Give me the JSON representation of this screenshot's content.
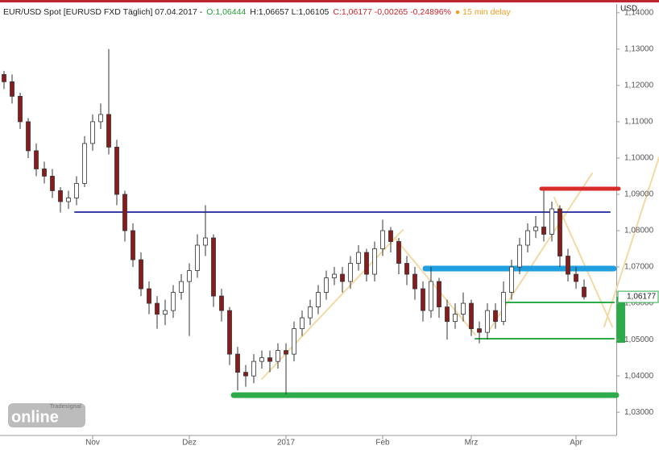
{
  "chart_data": {
    "type": "candlestick",
    "header": {
      "instrument": "EUR/USD Spot [EURUSD FXD Täglich] 07.04.2017 -",
      "open": "O:1,06444",
      "high_low": "H:1,06657 L:1,06105",
      "change": "C:1,06177 -0,00265 -0,24896%",
      "delay": "● 15 min delay"
    },
    "y_unit": "USD",
    "categories": [
      null,
      null,
      null,
      null,
      null,
      null,
      null,
      null,
      null,
      null,
      null,
      "Nov",
      null,
      null,
      null,
      null,
      null,
      null,
      null,
      null,
      null,
      null,
      null,
      "Dez",
      null,
      null,
      null,
      null,
      null,
      null,
      null,
      null,
      null,
      null,
      null,
      "2017",
      null,
      null,
      null,
      null,
      null,
      null,
      null,
      null,
      null,
      null,
      null,
      "Feb",
      null,
      null,
      null,
      null,
      null,
      null,
      null,
      null,
      null,
      null,
      "Mrz",
      null,
      null,
      null,
      null,
      null,
      null,
      null,
      null,
      null,
      null,
      null,
      null,
      "Apr",
      null
    ],
    "open": [
      1.123,
      1.121,
      1.117,
      1.11,
      1.102,
      1.097,
      1.095,
      1.091,
      1.088,
      1.089,
      1.093,
      1.104,
      1.11,
      1.112,
      1.103,
      1.09,
      1.08,
      1.072,
      1.064,
      1.06,
      1.057,
      1.058,
      1.063,
      1.066,
      1.069,
      1.076,
      1.078,
      1.062,
      1.058,
      1.046,
      1.041,
      1.04,
      1.044,
      1.045,
      1.044,
      1.047,
      1.046,
      1.053,
      1.056,
      1.059,
      1.063,
      1.067,
      1.068,
      1.066,
      1.071,
      1.074,
      1.068,
      1.075,
      1.08,
      1.077,
      1.071,
      1.068,
      1.064,
      1.058,
      1.066,
      1.059,
      1.055,
      1.057,
      1.06,
      1.053,
      1.052,
      1.058,
      1.055,
      1.063,
      1.07,
      1.076,
      1.08,
      1.081,
      1.079,
      1.086,
      1.073,
      1.068,
      1.06444
    ],
    "high": [
      1.124,
      1.123,
      1.118,
      1.111,
      1.104,
      1.099,
      1.097,
      1.092,
      1.091,
      1.095,
      1.106,
      1.112,
      1.115,
      1.13,
      1.105,
      1.091,
      1.082,
      1.074,
      1.066,
      1.062,
      1.061,
      1.065,
      1.068,
      1.071,
      1.079,
      1.087,
      1.079,
      1.064,
      1.059,
      1.048,
      1.043,
      1.046,
      1.047,
      1.047,
      1.049,
      1.049,
      1.055,
      1.058,
      1.061,
      1.065,
      1.069,
      1.07,
      1.07,
      1.073,
      1.076,
      1.075,
      1.077,
      1.083,
      1.081,
      1.078,
      1.073,
      1.07,
      1.066,
      1.07,
      1.067,
      1.061,
      1.06,
      1.063,
      1.061,
      1.055,
      1.06,
      1.06,
      1.066,
      1.072,
      1.078,
      1.082,
      1.084,
      1.091,
      1.088,
      1.087,
      1.075,
      1.07,
      1.06657
    ],
    "low": [
      1.119,
      1.115,
      1.108,
      1.1,
      1.095,
      1.093,
      1.089,
      1.085,
      1.086,
      1.087,
      1.092,
      1.102,
      1.108,
      1.101,
      1.087,
      1.077,
      1.07,
      1.062,
      1.057,
      1.053,
      1.054,
      1.056,
      1.061,
      1.051,
      1.067,
      1.073,
      1.059,
      1.055,
      1.043,
      1.036,
      1.037,
      1.038,
      1.042,
      1.041,
      1.042,
      1.035,
      1.044,
      1.051,
      1.054,
      1.057,
      1.061,
      1.065,
      1.063,
      1.064,
      1.069,
      1.066,
      1.066,
      1.073,
      1.074,
      1.068,
      1.065,
      1.061,
      1.055,
      1.056,
      1.056,
      1.05,
      1.053,
      1.055,
      1.051,
      1.049,
      1.05,
      1.053,
      1.054,
      1.061,
      1.068,
      1.074,
      1.078,
      1.077,
      1.077,
      1.07,
      1.066,
      1.064,
      1.06105
    ],
    "close": [
      1.121,
      1.117,
      1.11,
      1.102,
      1.097,
      1.095,
      1.091,
      1.088,
      1.089,
      1.093,
      1.104,
      1.11,
      1.112,
      1.103,
      1.09,
      1.08,
      1.072,
      1.064,
      1.06,
      1.057,
      1.058,
      1.063,
      1.066,
      1.069,
      1.076,
      1.078,
      1.062,
      1.058,
      1.046,
      1.041,
      1.04,
      1.044,
      1.045,
      1.044,
      1.047,
      1.046,
      1.053,
      1.056,
      1.059,
      1.063,
      1.067,
      1.068,
      1.066,
      1.071,
      1.074,
      1.068,
      1.075,
      1.08,
      1.077,
      1.071,
      1.068,
      1.064,
      1.058,
      1.066,
      1.059,
      1.055,
      1.057,
      1.06,
      1.053,
      1.052,
      1.058,
      1.055,
      1.063,
      1.07,
      1.076,
      1.08,
      1.081,
      1.079,
      1.086,
      1.073,
      1.068,
      1.066,
      1.06177
    ],
    "up_color": "#ffffff",
    "down_color": "#8b1a1a",
    "ylim": [
      1.0236,
      1.1424
    ],
    "yticks": [
      {
        "value": 1.03,
        "label": "1,03000"
      },
      {
        "value": 1.04,
        "label": "1,04000"
      },
      {
        "value": 1.05,
        "label": "1,05000"
      },
      {
        "value": 1.06,
        "label": "1,06000"
      },
      {
        "value": 1.07,
        "label": "1,07000"
      },
      {
        "value": 1.08,
        "label": "1,08000"
      },
      {
        "value": 1.09,
        "label": "1,09000"
      },
      {
        "value": 1.1,
        "label": "1,10000"
      },
      {
        "value": 1.11,
        "label": "1,11000"
      },
      {
        "value": 1.12,
        "label": "1,12000"
      },
      {
        "value": 1.13,
        "label": "1,13000"
      },
      {
        "value": 1.14,
        "label": "1,14000"
      }
    ],
    "last_price": {
      "value": 1.06177,
      "label": "1,06177"
    },
    "logo": {
      "small": "Tradesignal",
      "main": "online"
    }
  }
}
